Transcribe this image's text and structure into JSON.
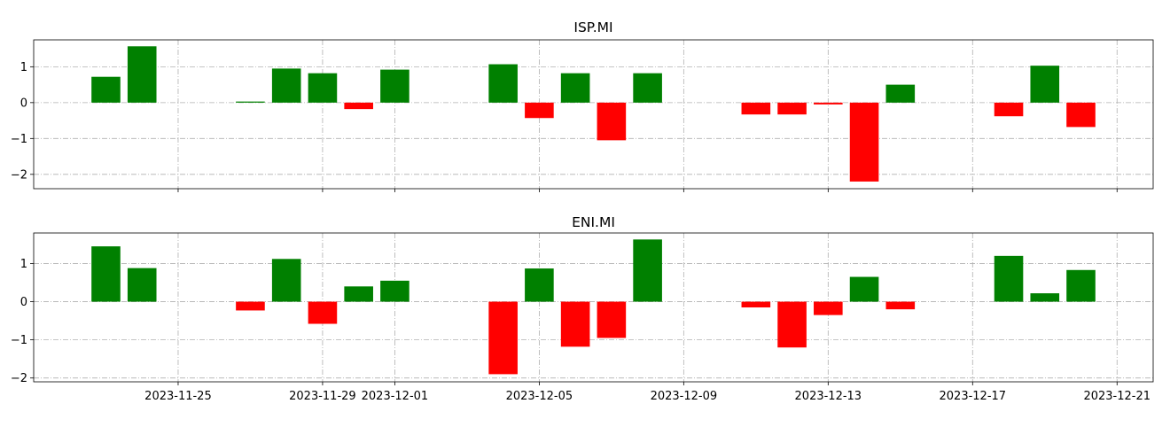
{
  "chart_data": [
    {
      "type": "bar",
      "title": "ISP.MI",
      "xlabel": "",
      "ylabel": "",
      "x_axis_type": "date",
      "xlim": [
        "2023-11-21",
        "2023-12-22"
      ],
      "ylim": [
        -2.4,
        1.75
      ],
      "yticks": [
        -2,
        -1,
        0,
        1
      ],
      "grid": true,
      "positive_color": "#008000",
      "negative_color": "#ff0000",
      "points": [
        {
          "date": "2023-11-23",
          "value": 0.72
        },
        {
          "date": "2023-11-24",
          "value": 1.57
        },
        {
          "date": "2023-11-27",
          "value": 0.03
        },
        {
          "date": "2023-11-28",
          "value": 0.95
        },
        {
          "date": "2023-11-29",
          "value": 0.82
        },
        {
          "date": "2023-11-30",
          "value": -0.18
        },
        {
          "date": "2023-12-01",
          "value": 0.92
        },
        {
          "date": "2023-12-04",
          "value": 1.07
        },
        {
          "date": "2023-12-05",
          "value": -0.43
        },
        {
          "date": "2023-12-06",
          "value": 0.82
        },
        {
          "date": "2023-12-07",
          "value": -1.05
        },
        {
          "date": "2023-12-08",
          "value": 0.82
        },
        {
          "date": "2023-12-11",
          "value": -0.33
        },
        {
          "date": "2023-12-12",
          "value": -0.33
        },
        {
          "date": "2023-12-13",
          "value": -0.05
        },
        {
          "date": "2023-12-14",
          "value": -2.2
        },
        {
          "date": "2023-12-15",
          "value": 0.5
        },
        {
          "date": "2023-12-18",
          "value": -0.38
        },
        {
          "date": "2023-12-19",
          "value": 1.03
        },
        {
          "date": "2023-12-20",
          "value": -0.68
        }
      ]
    },
    {
      "type": "bar",
      "title": "ENI.MI",
      "xlabel": "",
      "ylabel": "",
      "x_axis_type": "date",
      "xlim": [
        "2023-11-21",
        "2023-12-22"
      ],
      "ylim": [
        -2.1,
        1.8
      ],
      "yticks": [
        -2,
        -1,
        0,
        1
      ],
      "xticks": [
        "2023-11-25",
        "2023-11-29",
        "2023-12-01",
        "2023-12-05",
        "2023-12-09",
        "2023-12-13",
        "2023-12-17",
        "2023-12-21"
      ],
      "grid": true,
      "positive_color": "#008000",
      "negative_color": "#ff0000",
      "points": [
        {
          "date": "2023-11-23",
          "value": 1.45
        },
        {
          "date": "2023-11-24",
          "value": 0.88
        },
        {
          "date": "2023-11-27",
          "value": -0.23
        },
        {
          "date": "2023-11-28",
          "value": 1.12
        },
        {
          "date": "2023-11-29",
          "value": -0.58
        },
        {
          "date": "2023-11-30",
          "value": 0.4
        },
        {
          "date": "2023-12-01",
          "value": 0.55
        },
        {
          "date": "2023-12-04",
          "value": -1.9
        },
        {
          "date": "2023-12-05",
          "value": 0.87
        },
        {
          "date": "2023-12-06",
          "value": -1.18
        },
        {
          "date": "2023-12-07",
          "value": -0.95
        },
        {
          "date": "2023-12-08",
          "value": 1.63
        },
        {
          "date": "2023-12-11",
          "value": -0.15
        },
        {
          "date": "2023-12-12",
          "value": -1.2
        },
        {
          "date": "2023-12-13",
          "value": -0.35
        },
        {
          "date": "2023-12-14",
          "value": 0.65
        },
        {
          "date": "2023-12-15",
          "value": -0.2
        },
        {
          "date": "2023-12-18",
          "value": 1.2
        },
        {
          "date": "2023-12-19",
          "value": 0.22
        },
        {
          "date": "2023-12-20",
          "value": 0.83
        }
      ]
    }
  ]
}
